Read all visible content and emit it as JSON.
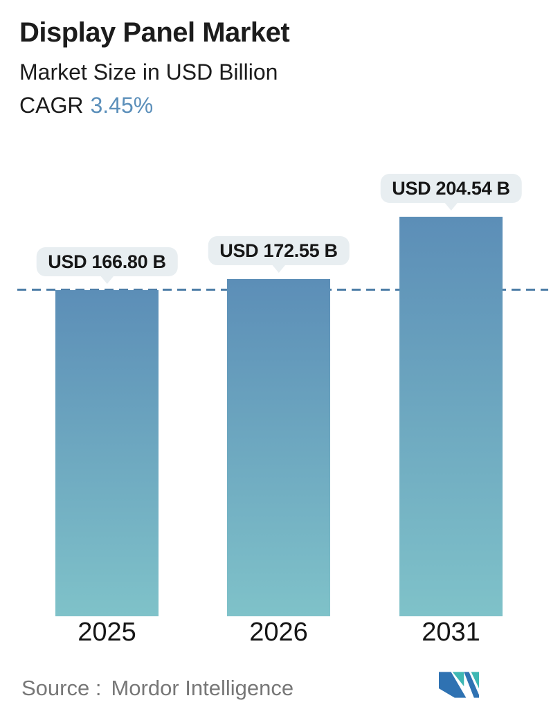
{
  "header": {
    "title": "Display Panel Market",
    "subtitle": "Market Size in USD Billion",
    "cagr_label": "CAGR",
    "cagr_value": "3.45%"
  },
  "chart_data": {
    "type": "bar",
    "categories": [
      "2025",
      "2026",
      "2031"
    ],
    "values": [
      166.8,
      172.55,
      204.54
    ],
    "value_labels": [
      "USD 166.80 B",
      "USD 172.55 B",
      "USD 204.54 B"
    ],
    "title": "Display Panel Market",
    "xlabel": "",
    "ylabel": "Market Size in USD Billion",
    "ylim": [
      0,
      220
    ],
    "grid": false,
    "legend": "none",
    "reference_line": {
      "value": 166.8,
      "style": "dashed",
      "note": "horizontal dashed line at 2025 market size level"
    }
  },
  "footer": {
    "source_label": "Source :",
    "source_value": "Mordor Intelligence"
  },
  "colors": {
    "accent": "#5b8fba",
    "bar_gradient_top": "#5c8eb7",
    "bar_gradient_bottom": "#7fc2c9",
    "dash_line": "#4e7ea7",
    "tooltip_bg": "#e8eef1",
    "text_dark": "#1c1c1c",
    "text_gray": "#777777",
    "logo_blue": "#2f72b2",
    "logo_teal": "#3eb7b3"
  },
  "icons": {
    "logo": "mordor-intelligence-logo"
  }
}
